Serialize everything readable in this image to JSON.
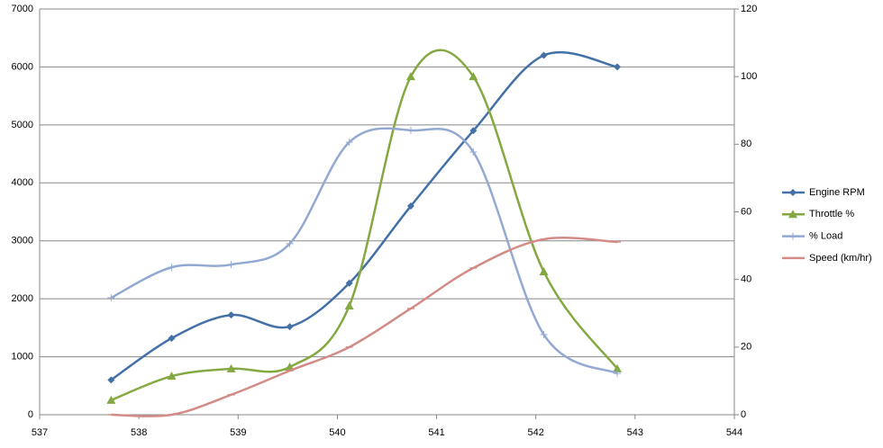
{
  "chart_data": {
    "type": "scatter-smooth",
    "x": [
      537.72,
      538.33,
      538.93,
      539.52,
      540.12,
      540.74,
      541.37,
      542.08,
      542.82
    ],
    "xlim": [
      537,
      544
    ],
    "xticks": [
      537,
      538,
      539,
      540,
      541,
      542,
      543,
      544
    ],
    "ylim": [
      0,
      7000
    ],
    "yticks": [
      0,
      1000,
      2000,
      3000,
      4000,
      5000,
      6000,
      7000
    ],
    "y2lim": [
      0,
      120
    ],
    "y2ticks": [
      0,
      20,
      40,
      60,
      80,
      100,
      120
    ],
    "grid": true,
    "legend": "right",
    "series": [
      {
        "name": "Engine RPM",
        "color": "#4470a8",
        "marker": "diamond",
        "values": [
          600,
          1320,
          1720,
          1520,
          2270,
          3600,
          4900,
          6200,
          6000
        ]
      },
      {
        "name": "Throttle %",
        "color": "#84a842",
        "marker": "triangle",
        "axis": "y2",
        "values": [
          4.3,
          11.4,
          13.6,
          14.1,
          32.2,
          100,
          100,
          42.3,
          13.6
        ]
      },
      {
        "name": "% Load",
        "color": "#93a9d1",
        "marker": "plus",
        "axis": "y2",
        "values": [
          34.6,
          43.6,
          44.4,
          50.6,
          80.6,
          84.1,
          77.7,
          23.7,
          12.2
        ]
      },
      {
        "name": "Speed (km/hr)",
        "color": "#d38b88",
        "marker": "dash",
        "axis": "y2",
        "values": [
          0,
          0,
          5.9,
          13,
          20,
          31.4,
          43.4,
          51.9,
          51.1
        ]
      }
    ]
  }
}
